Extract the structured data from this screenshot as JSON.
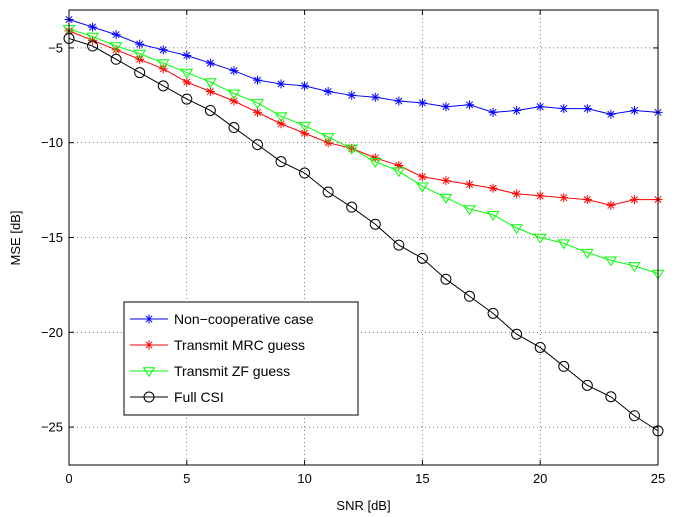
{
  "chart_data": {
    "type": "line",
    "xlabel": "SNR [dB]",
    "ylabel": "MSE [dB]",
    "xlim": [
      0,
      25
    ],
    "ylim": [
      -27,
      -3
    ],
    "xticks": [
      0,
      5,
      10,
      15,
      20,
      25
    ],
    "yticks": [
      -5,
      -10,
      -15,
      -20,
      -25
    ],
    "xtick_labels": [
      "0",
      "5",
      "10",
      "15",
      "20",
      "25"
    ],
    "ytick_labels": [
      "−5",
      "−10",
      "−15",
      "−20",
      "−25"
    ],
    "grid": true,
    "legend_position": "lower-left",
    "x": [
      0,
      1,
      2,
      3,
      4,
      5,
      6,
      7,
      8,
      9,
      10,
      11,
      12,
      13,
      14,
      15,
      16,
      17,
      18,
      19,
      20,
      21,
      22,
      23,
      24,
      25
    ],
    "series": [
      {
        "name": "Non−cooperative case",
        "color": "#0000ff",
        "marker": "asterisk",
        "values": [
          -3.5,
          -3.9,
          -4.3,
          -4.8,
          -5.1,
          -5.4,
          -5.8,
          -6.2,
          -6.7,
          -6.9,
          -7.0,
          -7.3,
          -7.5,
          -7.6,
          -7.8,
          -7.9,
          -8.1,
          -8.0,
          -8.4,
          -8.3,
          -8.1,
          -8.2,
          -8.2,
          -8.5,
          -8.3,
          -8.4
        ]
      },
      {
        "name": "Transmit MRC guess",
        "color": "#ff0000",
        "marker": "asterisk",
        "values": [
          -4.1,
          -4.6,
          -5.1,
          -5.6,
          -6.1,
          -6.8,
          -7.3,
          -7.8,
          -8.4,
          -9.0,
          -9.5,
          -10.0,
          -10.3,
          -10.8,
          -11.2,
          -11.8,
          -12.0,
          -12.2,
          -12.4,
          -12.7,
          -12.8,
          -12.9,
          -13.0,
          -13.3,
          -13.0,
          -13.0
        ]
      },
      {
        "name": "Transmit ZF guess",
        "color": "#00ff00",
        "marker": "triangle-down",
        "values": [
          -4.0,
          -4.4,
          -4.9,
          -5.3,
          -5.8,
          -6.3,
          -6.8,
          -7.4,
          -7.9,
          -8.6,
          -9.1,
          -9.7,
          -10.3,
          -11.0,
          -11.5,
          -12.3,
          -12.9,
          -13.5,
          -13.8,
          -14.5,
          -15.0,
          -15.3,
          -15.8,
          -16.2,
          -16.5,
          -16.9
        ]
      },
      {
        "name": "Full CSI",
        "color": "#000000",
        "marker": "circle",
        "values": [
          -4.5,
          -4.9,
          -5.6,
          -6.3,
          -7.0,
          -7.7,
          -8.3,
          -9.2,
          -10.1,
          -11.0,
          -11.6,
          -12.6,
          -13.4,
          -14.3,
          -15.4,
          -16.1,
          -17.2,
          -18.1,
          -19.0,
          -20.1,
          -20.8,
          -21.8,
          -22.8,
          -23.4,
          -24.4,
          -25.2
        ]
      }
    ]
  }
}
